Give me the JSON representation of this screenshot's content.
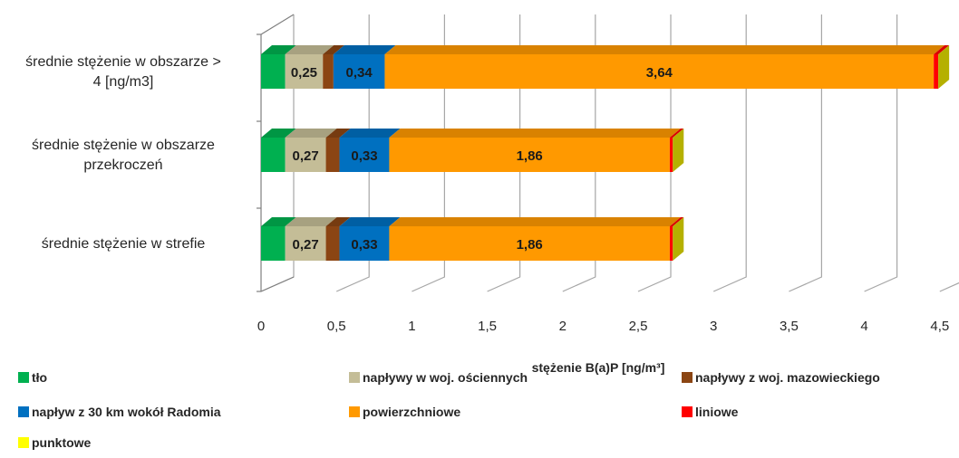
{
  "chart_data": {
    "type": "bar",
    "orientation": "horizontal",
    "stacked": true,
    "style": "3d",
    "categories": [
      "średnie stężenie w obszarze > 4 [ng/m3]",
      "średnie stężenie w obszarze przekroczeń",
      "średnie stężenie w strefie"
    ],
    "series": [
      {
        "name": "tło",
        "color": "#00b050",
        "values": [
          0.16,
          0.16,
          0.16
        ]
      },
      {
        "name": "napływy w woj. ościennych",
        "color": "#c4bd97",
        "values": [
          0.25,
          0.27,
          0.27
        ]
      },
      {
        "name": "napływy z woj. mazowieckiego",
        "color": "#8b4513",
        "values": [
          0.07,
          0.09,
          0.09
        ]
      },
      {
        "name": "napływ z 30 km wokół Radomia",
        "color": "#0070c0",
        "values": [
          0.34,
          0.33,
          0.33
        ]
      },
      {
        "name": "powierzchniowe",
        "color": "#ff9900",
        "values": [
          3.64,
          1.86,
          1.86
        ]
      },
      {
        "name": "liniowe",
        "color": "#ff0000",
        "values": [
          0.03,
          0.02,
          0.02
        ]
      },
      {
        "name": "punktowe",
        "color": "#ffff00",
        "values": [
          0.0,
          0.0,
          0.0
        ]
      }
    ],
    "data_labels": [
      {
        "category": 0,
        "series": 1,
        "text": "0,25"
      },
      {
        "category": 0,
        "series": 3,
        "text": "0,34"
      },
      {
        "category": 0,
        "series": 4,
        "text": "3,64"
      },
      {
        "category": 1,
        "series": 1,
        "text": "0,27"
      },
      {
        "category": 1,
        "series": 3,
        "text": "0,33"
      },
      {
        "category": 1,
        "series": 4,
        "text": "1,86"
      },
      {
        "category": 2,
        "series": 1,
        "text": "0,27"
      },
      {
        "category": 2,
        "series": 3,
        "text": "0,33"
      },
      {
        "category": 2,
        "series": 4,
        "text": "1,86"
      }
    ],
    "x_ticks": [
      "0",
      "0,5",
      "1",
      "1,5",
      "2",
      "2,5",
      "3",
      "3,5",
      "4",
      "4,5"
    ],
    "x_tick_values": [
      0,
      0.5,
      1,
      1.5,
      2,
      2.5,
      3,
      3.5,
      4,
      4.5
    ],
    "xlim": [
      0,
      4.5
    ],
    "xlabel": "stężenie B(a)P [ng/m³]",
    "title": "",
    "grid": true,
    "legend_position": "bottom"
  }
}
